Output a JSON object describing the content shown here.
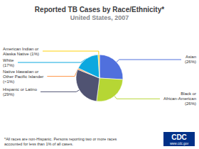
{
  "chart_data": {
    "type": "pie",
    "title": "Reported TB Cases by Race/Ethnicity*",
    "subtitle": "United States, 2007",
    "categories": [
      "Asian\n(26%)",
      "Black or\nAfrican-American\n(26%)",
      "Hispanic or Latino\n(29%)",
      "Native Hawaiian or\nOther Pacific Islander\n(<1%)",
      "White\n(17%)",
      "American Indian or\nAlaska Native (1%)"
    ],
    "values": [
      26,
      26,
      29,
      1,
      17,
      1
    ],
    "footnote": [
      "*All races are non-Hispanic. Persons reporting two or more races",
      "accounted for less than 1% of all cases."
    ],
    "annotations": [
      "CDC",
      "www.cdc.gov"
    ]
  }
}
